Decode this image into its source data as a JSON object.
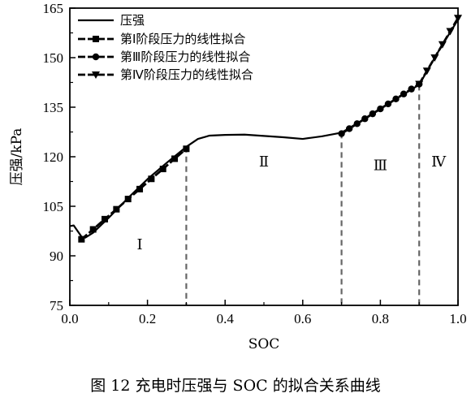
{
  "chart_data": {
    "type": "line",
    "xlabel": "SOC",
    "ylabel": "压强/kPa",
    "xlim": [
      0.0,
      1.0
    ],
    "ylim": [
      75,
      165
    ],
    "xticks": [
      "0.0",
      "0.2",
      "0.4",
      "0.6",
      "0.8",
      "1.0"
    ],
    "yticks": [
      "75",
      "90",
      "105",
      "120",
      "135",
      "150",
      "165"
    ],
    "grid": false,
    "legend_position": "top-left",
    "legend": [
      {
        "label": "压强",
        "marker": "none",
        "series": "pressure"
      },
      {
        "label": "第Ⅰ阶段压力的线性拟合",
        "marker": "square",
        "series": "fit1"
      },
      {
        "label": "第Ⅲ阶段压力的线性拟合",
        "marker": "circle",
        "series": "fit3"
      },
      {
        "label": "第Ⅳ阶段压力的线性拟合",
        "marker": "triangle-down",
        "series": "fit4"
      }
    ],
    "series": [
      {
        "id": "pressure",
        "style": "solid",
        "x": [
          0.0,
          0.01,
          0.02,
          0.03,
          0.04,
          0.06,
          0.1,
          0.15,
          0.2,
          0.25,
          0.3,
          0.33,
          0.36,
          0.4,
          0.45,
          0.5,
          0.55,
          0.6,
          0.65,
          0.7,
          0.75,
          0.8,
          0.85,
          0.9,
          0.95,
          1.0
        ],
        "y": [
          99,
          99.2,
          97.5,
          95.8,
          95.5,
          97.0,
          101.5,
          107.5,
          113.2,
          118.2,
          123.0,
          125.4,
          126.4,
          126.6,
          126.7,
          126.3,
          125.9,
          125.4,
          126.2,
          127.3,
          130.8,
          134.6,
          138.2,
          141.8,
          152.0,
          161.5
        ]
      },
      {
        "id": "fit1",
        "style": "dashed",
        "marker": "square",
        "x": [
          0.03,
          0.06,
          0.09,
          0.12,
          0.15,
          0.18,
          0.21,
          0.24,
          0.27,
          0.3
        ],
        "y": [
          95.0,
          98.0,
          101.1,
          104.1,
          107.2,
          110.2,
          113.3,
          116.3,
          119.4,
          122.4
        ]
      },
      {
        "id": "fit3",
        "style": "dashed",
        "marker": "circle",
        "x": [
          0.7,
          0.72,
          0.74,
          0.76,
          0.78,
          0.8,
          0.82,
          0.84,
          0.86,
          0.88,
          0.9
        ],
        "y": [
          127.0,
          128.5,
          130.0,
          131.5,
          133.0,
          134.5,
          136.0,
          137.5,
          139.0,
          140.5,
          142.0
        ]
      },
      {
        "id": "fit4",
        "style": "dashed",
        "marker": "triangle-down",
        "x": [
          0.9,
          0.92,
          0.94,
          0.96,
          0.98,
          1.0
        ],
        "y": [
          142.0,
          146.0,
          150.0,
          154.0,
          158.0,
          162.0
        ]
      }
    ],
    "stage_boundaries": [
      0.3,
      0.7,
      0.9
    ],
    "stage_boundary_y": [
      123.0,
      127.3,
      141.8
    ],
    "stage_labels": [
      {
        "text": "Ⅰ",
        "x": 0.18,
        "y": 92
      },
      {
        "text": "Ⅱ",
        "x": 0.5,
        "y": 117
      },
      {
        "text": "Ⅲ",
        "x": 0.8,
        "y": 116
      },
      {
        "text": "Ⅳ",
        "x": 0.95,
        "y": 117
      }
    ]
  },
  "caption": "图 12    充电时压强与 SOC 的拟合关系曲线"
}
